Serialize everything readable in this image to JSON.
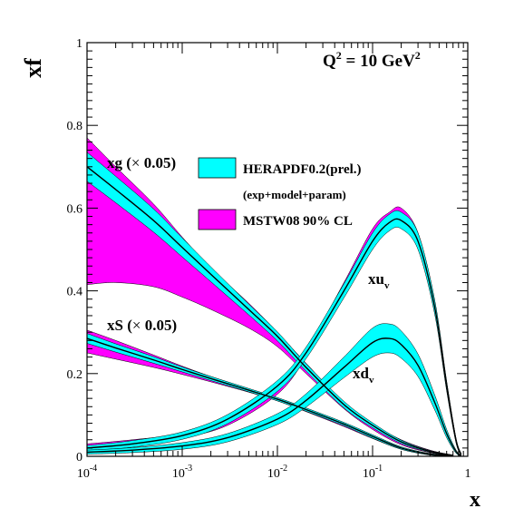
{
  "chart_data": {
    "type": "line",
    "x_scale": "log",
    "xlim": [
      0.0001,
      1
    ],
    "ylim": [
      0,
      1
    ],
    "xlabel": "x",
    "ylabel": "xf",
    "annotation": {
      "main": "Q",
      "sup": "2",
      "rest": " = 10 GeV",
      "sup2": "2"
    },
    "x_ticks": [
      {
        "base": "10",
        "exp": "-4",
        "value": 0.0001
      },
      {
        "base": "10",
        "exp": "-3",
        "value": 0.001
      },
      {
        "base": "10",
        "exp": "-2",
        "value": 0.01
      },
      {
        "base": "10",
        "exp": "-1",
        "value": 0.1
      },
      {
        "base": "1",
        "exp": "",
        "value": 1
      }
    ],
    "y_ticks": [
      "0",
      "0.2",
      "0.4",
      "0.6",
      "0.8",
      "1"
    ],
    "y_tick_values": [
      0,
      0.2,
      0.4,
      0.6,
      0.8,
      1
    ],
    "legend": [
      {
        "label": "HERAPDF0.2(prel.)",
        "color": "#00ffff"
      },
      {
        "label": "(exp+model+param)",
        "color": ""
      },
      {
        "label": "MSTW08 90% CL",
        "color": "#ff00ff"
      }
    ],
    "curve_labels": {
      "xg": {
        "main": "xg (",
        "sym": "×",
        "rest": " 0.05)"
      },
      "xS": {
        "main": "xS (",
        "sym": "×",
        "rest": " 0.05)"
      },
      "xuv": {
        "main": "xu",
        "sub": "v"
      },
      "xdv": {
        "main": "xd",
        "sub": "v"
      }
    },
    "series": [
      {
        "id": "xg",
        "scaled_by": 0.05,
        "x": [
          0.0001,
          0.0002,
          0.0005,
          0.001,
          0.002,
          0.005,
          0.01,
          0.02,
          0.05,
          0.1,
          0.2,
          0.4,
          0.7
        ],
        "hera_central": [
          0.7,
          0.645,
          0.57,
          0.505,
          0.44,
          0.355,
          0.29,
          0.215,
          0.125,
          0.075,
          0.035,
          0.012,
          0.002
        ],
        "hera_band": [
          0.035,
          0.032,
          0.028,
          0.023,
          0.018,
          0.013,
          0.011,
          0.009,
          0.008,
          0.006,
          0.004,
          0.002,
          0.001
        ],
        "mstw_low": [
          0.415,
          0.42,
          0.41,
          0.385,
          0.355,
          0.31,
          0.265,
          0.2,
          0.115,
          0.065,
          0.028,
          0.009,
          0.001
        ],
        "mstw_high": [
          0.77,
          0.7,
          0.61,
          0.53,
          0.455,
          0.37,
          0.3,
          0.225,
          0.13,
          0.078,
          0.04,
          0.015,
          0.003
        ]
      },
      {
        "id": "xS",
        "scaled_by": 0.05,
        "x": [
          0.0001,
          0.0002,
          0.0005,
          0.001,
          0.002,
          0.005,
          0.01,
          0.02,
          0.05,
          0.1,
          0.2,
          0.4,
          0.7
        ],
        "hera_central": [
          0.285,
          0.262,
          0.233,
          0.21,
          0.188,
          0.16,
          0.138,
          0.113,
          0.078,
          0.048,
          0.02,
          0.005,
          0.001
        ],
        "hera_band": [
          0.012,
          0.01,
          0.008,
          0.006,
          0.005,
          0.004,
          0.004,
          0.004,
          0.004,
          0.004,
          0.003,
          0.002,
          0.001
        ],
        "mstw_low": [
          0.25,
          0.235,
          0.215,
          0.198,
          0.18,
          0.155,
          0.134,
          0.108,
          0.072,
          0.043,
          0.017,
          0.004,
          0.0
        ],
        "mstw_high": [
          0.305,
          0.28,
          0.245,
          0.218,
          0.193,
          0.163,
          0.141,
          0.116,
          0.08,
          0.05,
          0.022,
          0.006,
          0.001
        ]
      },
      {
        "id": "xuv",
        "x": [
          0.0001,
          0.0003,
          0.001,
          0.003,
          0.01,
          0.02,
          0.05,
          0.1,
          0.15,
          0.2,
          0.3,
          0.45,
          0.6,
          0.75,
          0.85
        ],
        "hera_central": [
          0.02,
          0.03,
          0.05,
          0.09,
          0.17,
          0.25,
          0.4,
          0.52,
          0.565,
          0.57,
          0.52,
          0.36,
          0.17,
          0.04,
          0.005
        ],
        "hera_band": [
          0.006,
          0.008,
          0.009,
          0.011,
          0.013,
          0.014,
          0.017,
          0.02,
          0.02,
          0.02,
          0.02,
          0.017,
          0.012,
          0.006,
          0.002
        ],
        "mstw_low": [
          0.02,
          0.03,
          0.045,
          0.075,
          0.15,
          0.24,
          0.4,
          0.53,
          0.575,
          0.585,
          0.525,
          0.36,
          0.17,
          0.04,
          0.005
        ],
        "mstw_high": [
          0.03,
          0.04,
          0.055,
          0.09,
          0.17,
          0.255,
          0.42,
          0.55,
          0.59,
          0.6,
          0.54,
          0.375,
          0.18,
          0.045,
          0.006
        ]
      },
      {
        "id": "xdv",
        "x": [
          0.0001,
          0.0003,
          0.001,
          0.003,
          0.01,
          0.02,
          0.05,
          0.1,
          0.15,
          0.2,
          0.3,
          0.45,
          0.6,
          0.75,
          0.85
        ],
        "hera_central": [
          0.01,
          0.015,
          0.025,
          0.045,
          0.09,
          0.135,
          0.215,
          0.275,
          0.285,
          0.27,
          0.22,
          0.13,
          0.055,
          0.012,
          0.002
        ],
        "hera_band": [
          0.005,
          0.006,
          0.008,
          0.01,
          0.013,
          0.016,
          0.025,
          0.035,
          0.035,
          0.033,
          0.027,
          0.018,
          0.01,
          0.004,
          0.001
        ],
        "mstw_low": [
          0.01,
          0.015,
          0.025,
          0.045,
          0.085,
          0.125,
          0.2,
          0.245,
          0.255,
          0.245,
          0.2,
          0.12,
          0.05,
          0.01,
          0.002
        ],
        "mstw_high": [
          0.015,
          0.02,
          0.03,
          0.05,
          0.095,
          0.14,
          0.225,
          0.27,
          0.275,
          0.26,
          0.215,
          0.13,
          0.057,
          0.013,
          0.003
        ]
      }
    ]
  }
}
